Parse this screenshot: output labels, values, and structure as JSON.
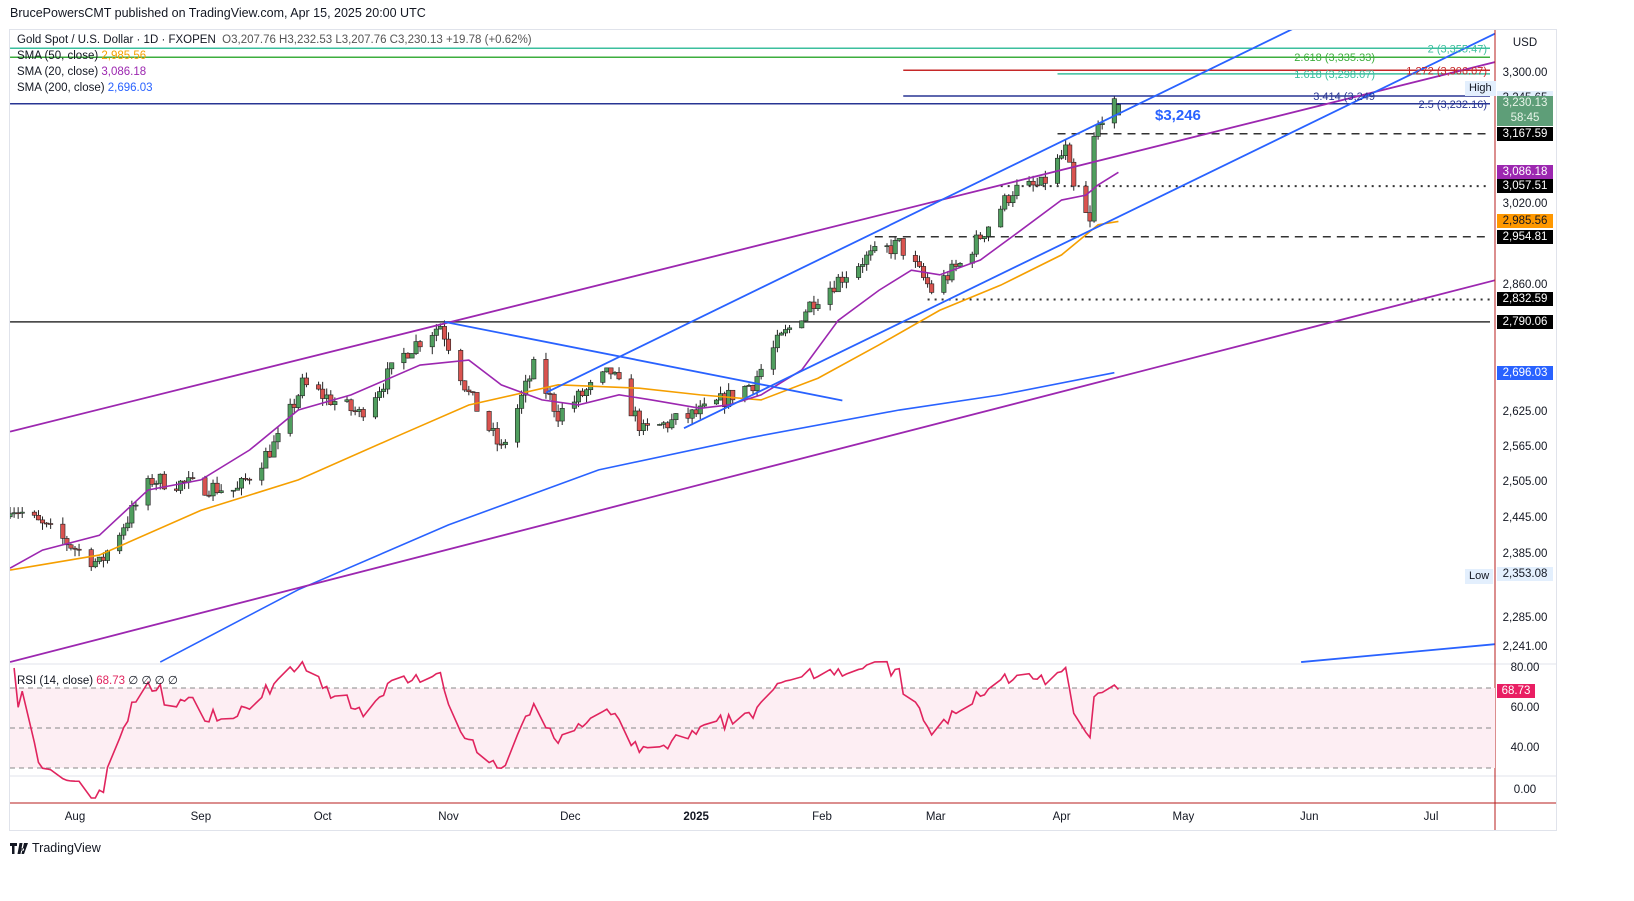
{
  "header": {
    "published": "BrucePowersCMT published on TradingView.com, Apr 15, 2025 20:00 UTC"
  },
  "legend": {
    "symbol": "Gold Spot / U.S. Dollar · 1D · FXOPEN",
    "ohlc": "O3,207.76  H3,232.53  L3,207.76  C3,230.13  +19.78 (+0.62%)",
    "sma50_label": "SMA (50, close)",
    "sma50_value": "2,985.56",
    "sma20_label": "SMA (20, close)",
    "sma20_value": "3,086.18",
    "sma200_label": "SMA (200, close)",
    "sma200_value": "2,696.03",
    "rsi_label": "RSI (14, close)",
    "rsi_value": "68.73",
    "rsi_extra": "∅ ∅ ∅ ∅"
  },
  "axis": {
    "currency": "USD",
    "high_tag": "High",
    "low_tag": "Low",
    "current_price": "3,230.13",
    "countdown": "58:45",
    "labels": [
      {
        "price": 3300,
        "text": "3,300.00",
        "style": ""
      },
      {
        "price": 3245.65,
        "text": "3,245.65",
        "style": "hl"
      },
      {
        "price": 3167.59,
        "text": "3,167.59",
        "style": "black"
      },
      {
        "price": 3086.18,
        "text": "3,086.18",
        "style": "purple"
      },
      {
        "price": 3057.51,
        "text": "3,057.51",
        "style": "black"
      },
      {
        "price": 3020,
        "text": "3,020.00",
        "style": ""
      },
      {
        "price": 2985.56,
        "text": "2,985.56",
        "style": "orange"
      },
      {
        "price": 2954.81,
        "text": "2,954.81",
        "style": "black"
      },
      {
        "price": 2860,
        "text": "2,860.00",
        "style": ""
      },
      {
        "price": 2832.59,
        "text": "2,832.59",
        "style": "black"
      },
      {
        "price": 2790.06,
        "text": "2,790.06",
        "style": "black"
      },
      {
        "price": 2696.03,
        "text": "2,696.03",
        "style": "blue"
      },
      {
        "price": 2625,
        "text": "2,625.00",
        "style": ""
      },
      {
        "price": 2565,
        "text": "2,565.00",
        "style": ""
      },
      {
        "price": 2505,
        "text": "2,505.00",
        "style": ""
      },
      {
        "price": 2445,
        "text": "2,445.00",
        "style": ""
      },
      {
        "price": 2385,
        "text": "2,385.00",
        "style": ""
      },
      {
        "price": 2353.08,
        "text": "2,353.08",
        "style": "hl"
      },
      {
        "price": 2285,
        "text": "2,285.00",
        "style": ""
      },
      {
        "price": 2241,
        "text": "2,241.00",
        "style": ""
      }
    ],
    "rsi_labels": [
      {
        "v": 80,
        "text": "80.00"
      },
      {
        "v": 60,
        "text": "60.00"
      },
      {
        "v": 40,
        "text": "40.00"
      }
    ],
    "rsi_current": {
      "v": 68.73,
      "text": "68.73"
    },
    "zero_label": "0.00"
  },
  "time_axis": [
    {
      "date": "2024-08-01",
      "text": "Aug"
    },
    {
      "date": "2024-09-01",
      "text": "Sep"
    },
    {
      "date": "2024-10-01",
      "text": "Oct"
    },
    {
      "date": "2024-11-01",
      "text": "Nov"
    },
    {
      "date": "2024-12-01",
      "text": "Dec"
    },
    {
      "date": "2025-01-01",
      "text": "2025"
    },
    {
      "date": "2025-02-01",
      "text": "Feb"
    },
    {
      "date": "2025-03-01",
      "text": "Mar"
    },
    {
      "date": "2025-04-01",
      "text": "Apr"
    },
    {
      "date": "2025-05-01",
      "text": "May"
    },
    {
      "date": "2025-06-01",
      "text": "Jun"
    },
    {
      "date": "2025-07-01",
      "text": "Jul"
    }
  ],
  "annotation": "$3,246",
  "logo": "TradingView",
  "colors": {
    "up": "#4f9e5e",
    "down": "#d9534f",
    "sma20": "#9c27b0",
    "sma50": "#f59f00",
    "sma200": "#2962ff",
    "rsi": "#e0245e",
    "channel_purple": "#9c27b0",
    "channel_blue": "#2962ff"
  },
  "chart_data": {
    "type": "candlestick",
    "title": "Gold Spot / U.S. Dollar · 1D · FXOPEN",
    "scale": "log",
    "ylim": [
      2200,
      3420
    ],
    "last_bar": {
      "date": "2025-04-15",
      "o": 3207.76,
      "h": 3232.53,
      "l": 3207.76,
      "c": 3230.13
    },
    "close_path": [
      [
        "2024-07-16",
        2466
      ],
      [
        "2024-08-07",
        2369
      ],
      [
        "2024-08-20",
        2508
      ],
      [
        "2024-09-10",
        2490
      ],
      [
        "2024-09-20",
        2576
      ],
      [
        "2024-09-26",
        2674
      ],
      [
        "2024-10-10",
        2622
      ],
      [
        "2024-10-22",
        2738
      ],
      [
        "2024-10-30",
        2785
      ],
      [
        "2024-11-06",
        2657
      ],
      [
        "2024-11-14",
        2559
      ],
      [
        "2024-11-22",
        2705
      ],
      [
        "2024-11-28",
        2622
      ],
      [
        "2024-12-11",
        2697
      ],
      [
        "2024-12-19",
        2591
      ],
      [
        "2025-01-03",
        2627
      ],
      [
        "2025-01-15",
        2678
      ],
      [
        "2025-01-21",
        2750
      ],
      [
        "2025-01-30",
        2832
      ],
      [
        "2025-02-11",
        2909
      ],
      [
        "2025-02-20",
        2940
      ],
      [
        "2025-02-28",
        2850
      ],
      [
        "2025-03-07",
        2900
      ],
      [
        "2025-03-14",
        2979
      ],
      [
        "2025-03-20",
        3049
      ],
      [
        "2025-03-27",
        3058
      ],
      [
        "2025-04-02",
        3132
      ],
      [
        "2025-04-04",
        3049
      ],
      [
        "2025-04-08",
        2979
      ],
      [
        "2025-04-09",
        3155
      ],
      [
        "2025-04-11",
        3209
      ],
      [
        "2025-04-15",
        3230.13
      ]
    ],
    "sma20": [
      [
        "2024-07-16",
        2363
      ],
      [
        "2024-07-24",
        2392
      ],
      [
        "2024-08-07",
        2416
      ],
      [
        "2024-08-19",
        2491
      ],
      [
        "2024-09-01",
        2508
      ],
      [
        "2024-09-13",
        2559
      ],
      [
        "2024-09-25",
        2629
      ],
      [
        "2024-10-08",
        2656
      ],
      [
        "2024-10-25",
        2710
      ],
      [
        "2024-11-06",
        2719
      ],
      [
        "2024-11-14",
        2674
      ],
      [
        "2024-11-24",
        2647
      ],
      [
        "2024-12-03",
        2638
      ],
      [
        "2024-12-13",
        2656
      ],
      [
        "2024-12-21",
        2647
      ],
      [
        "2025-01-02",
        2632
      ],
      [
        "2025-01-09",
        2638
      ],
      [
        "2025-01-17",
        2656
      ],
      [
        "2025-01-27",
        2701
      ],
      [
        "2025-02-05",
        2793
      ],
      [
        "2025-02-15",
        2850
      ],
      [
        "2025-02-23",
        2889
      ],
      [
        "2025-03-02",
        2880
      ],
      [
        "2025-03-12",
        2909
      ],
      [
        "2025-03-22",
        2968
      ],
      [
        "2025-04-01",
        3029
      ],
      [
        "2025-04-07",
        3039
      ],
      [
        "2025-04-10",
        3060
      ],
      [
        "2025-04-15",
        3086.18
      ]
    ],
    "sma50": [
      [
        "2024-07-16",
        2360
      ],
      [
        "2024-08-07",
        2384
      ],
      [
        "2024-09-01",
        2457
      ],
      [
        "2024-09-25",
        2508
      ],
      [
        "2024-10-20",
        2585
      ],
      [
        "2024-11-06",
        2638
      ],
      [
        "2024-11-28",
        2674
      ],
      [
        "2024-12-18",
        2668
      ],
      [
        "2025-01-02",
        2656
      ],
      [
        "2025-01-17",
        2647
      ],
      [
        "2025-01-31",
        2686
      ],
      [
        "2025-02-15",
        2747
      ],
      [
        "2025-03-02",
        2812
      ],
      [
        "2025-03-17",
        2860
      ],
      [
        "2025-04-01",
        2919
      ],
      [
        "2025-04-10",
        2979
      ],
      [
        "2025-04-15",
        2985.56
      ]
    ],
    "sma200": [
      [
        "2024-08-22",
        2218
      ],
      [
        "2024-09-25",
        2329
      ],
      [
        "2024-11-01",
        2433
      ],
      [
        "2024-12-08",
        2525
      ],
      [
        "2025-01-14",
        2580
      ],
      [
        "2025-02-20",
        2629
      ],
      [
        "2025-03-17",
        2656
      ],
      [
        "2025-04-14",
        2696.03
      ]
    ],
    "trendlines": [
      {
        "name": "purple-upper-channel",
        "color": "#9c27b0",
        "p1": [
          "2024-07-16",
          2591
        ],
        "p2": [
          "2025-07-17",
          3325
        ]
      },
      {
        "name": "purple-lower-channel",
        "color": "#9c27b0",
        "p1": [
          "2024-07-16",
          2218
        ],
        "p2": [
          "2025-07-17",
          2870
        ]
      },
      {
        "name": "blue-channel-upper",
        "color": "#2962ff",
        "p1": [
          "2024-11-25",
          2660
        ],
        "p2": [
          "2025-05-30",
          3409
        ]
      },
      {
        "name": "blue-channel-lower",
        "color": "#2962ff",
        "p1": [
          "2024-12-29",
          2597
        ],
        "p2": [
          "2025-07-17",
          3390
        ]
      },
      {
        "name": "blue-downtrend-line",
        "color": "#2962ff",
        "p1": [
          "2024-10-31",
          2790
        ],
        "p2": [
          "2025-02-06",
          2646
        ]
      },
      {
        "name": "blue-lower-extension",
        "color": "#2962ff",
        "p1": [
          "2025-05-30",
          2218
        ],
        "p2": [
          "2025-07-17",
          2245
        ]
      }
    ],
    "levels": [
      {
        "name": "fib-2",
        "price": 3355.47,
        "from": "2024-07-16",
        "color": "#3bbf9e",
        "style": "solid",
        "label": "2 (3,355.47)"
      },
      {
        "name": "fib-2618",
        "price": 3335.33,
        "from": "2024-07-16",
        "color": "#3dae3d",
        "style": "solid",
        "label": "2.618 (3,335.33)"
      },
      {
        "name": "fib-1272",
        "price": 3306.07,
        "from": "2025-02-21",
        "color": "#c62828",
        "style": "solid",
        "label": "1.272 (3,306.07)"
      },
      {
        "name": "fib-1618",
        "price": 3298.07,
        "from": "2025-03-31",
        "color": "#3bbf9e",
        "style": "solid",
        "label": "1.618 (3,298.07)"
      },
      {
        "name": "fib-3414",
        "price": 3249.2,
        "from": "2025-02-21",
        "color": "#283593",
        "style": "solid",
        "label": "3.414 (3,249"
      },
      {
        "name": "fib-25",
        "price": 3232.16,
        "from": "2024-07-16",
        "color": "#283593",
        "style": "solid",
        "label": "2.5 (3,232.16)"
      },
      {
        "name": "level-3167",
        "price": 3167.59,
        "from": "2025-03-31",
        "color": "#333",
        "style": "dash",
        "label": ""
      },
      {
        "name": "level-3057",
        "price": 3057.51,
        "from": "2025-03-17",
        "color": "#333",
        "style": "dot",
        "label": ""
      },
      {
        "name": "level-2954",
        "price": 2954.81,
        "from": "2025-02-14",
        "color": "#333",
        "style": "dash",
        "label": ""
      },
      {
        "name": "level-2832",
        "price": 2832.59,
        "from": "2025-02-27",
        "color": "#333",
        "style": "dot",
        "label": ""
      },
      {
        "name": "level-2790",
        "price": 2790.06,
        "from": "2024-07-16",
        "color": "#333",
        "style": "solid",
        "label": ""
      }
    ],
    "rsi": {
      "period": 14,
      "overbought": 70,
      "mid": 50,
      "oversold": 30
    }
  }
}
